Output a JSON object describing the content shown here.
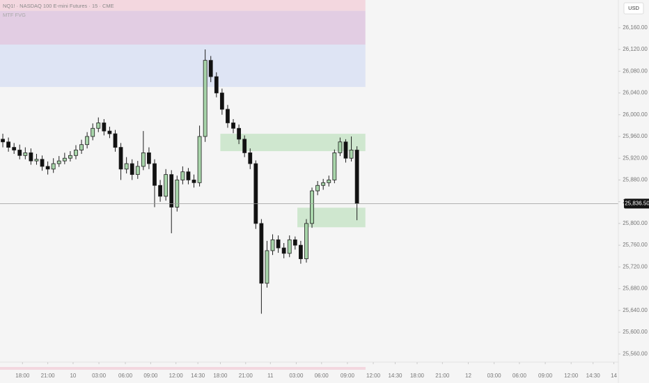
{
  "chart_data": {
    "type": "candlestick",
    "title": "NQ1! · NASDAQ 100 E-mini Futures · 15 · CME",
    "subtitle": "MTF FVG",
    "currency": "USD",
    "last_price": {
      "value": 25836.5,
      "label": "25,836.50"
    },
    "up_color": "#a8d5aa",
    "down_color": "#111111",
    "x": [
      0,
      1,
      2,
      3,
      4,
      5,
      6,
      7,
      8,
      9,
      10,
      11,
      12,
      13,
      14,
      15,
      16,
      17,
      18,
      19,
      20,
      21,
      22,
      23,
      24,
      25,
      26,
      27,
      28,
      29,
      30,
      31,
      32,
      33,
      34,
      35,
      36,
      37,
      38,
      39,
      40,
      41,
      42,
      43,
      44,
      45,
      46,
      47,
      48,
      49,
      50,
      51,
      52,
      53,
      54,
      55,
      56,
      57,
      58,
      59,
      60,
      61,
      62,
      63
    ],
    "open": [
      25955,
      25950,
      25940,
      25935,
      25925,
      25930,
      25915,
      25918,
      25905,
      25900,
      25910,
      25915,
      25920,
      25925,
      25935,
      25945,
      25960,
      25975,
      25985,
      25970,
      25965,
      25940,
      25900,
      25910,
      25890,
      25905,
      25930,
      25910,
      25870,
      25850,
      25890,
      25830,
      25880,
      25895,
      25880,
      25875,
      25960,
      26100,
      26070,
      26040,
      26010,
      25985,
      25975,
      25955,
      25930,
      25910,
      25800,
      25690,
      25750,
      25770,
      25755,
      25745,
      25770,
      25760,
      25735,
      25800,
      25860,
      25870,
      25875,
      25880,
      25930,
      25950,
      25920,
      25935
    ],
    "high": [
      25965,
      25958,
      25948,
      25945,
      25940,
      25938,
      25928,
      25925,
      25914,
      25920,
      25924,
      25930,
      25933,
      25944,
      25954,
      25968,
      25984,
      25995,
      25992,
      25978,
      25972,
      25948,
      25922,
      25918,
      25915,
      25970,
      25940,
      25918,
      25880,
      25900,
      25898,
      25888,
      25905,
      25902,
      25890,
      25980,
      26120,
      26108,
      26078,
      26048,
      26018,
      25992,
      25982,
      25962,
      25938,
      25916,
      25808,
      25768,
      25780,
      25778,
      25764,
      25778,
      25776,
      25768,
      25808,
      25866,
      25878,
      25882,
      25888,
      25936,
      25958,
      25955,
      25960,
      25942
    ],
    "low": [
      25940,
      25932,
      25928,
      25918,
      25918,
      25908,
      25908,
      25897,
      25890,
      25893,
      25904,
      25909,
      25914,
      25918,
      25928,
      25938,
      25953,
      25968,
      25962,
      25957,
      25932,
      25880,
      25892,
      25880,
      25882,
      25898,
      25900,
      25830,
      25840,
      25842,
      25782,
      25822,
      25872,
      25872,
      25866,
      25868,
      25950,
      26060,
      26032,
      26000,
      25976,
      25966,
      25946,
      25922,
      25900,
      25790,
      25634,
      25682,
      25742,
      25746,
      25736,
      25738,
      25752,
      25726,
      25728,
      25792,
      25852,
      25862,
      25868,
      25874,
      25924,
      25912,
      25914,
      25806
    ],
    "close": [
      25950,
      25940,
      25935,
      25925,
      25930,
      25915,
      25918,
      25905,
      25900,
      25910,
      25915,
      25920,
      25925,
      25935,
      25945,
      25960,
      25975,
      25985,
      25970,
      25965,
      25940,
      25900,
      25910,
      25890,
      25905,
      25930,
      25910,
      25870,
      25850,
      25890,
      25830,
      25880,
      25895,
      25880,
      25875,
      25960,
      26100,
      26070,
      26040,
      26010,
      25985,
      25975,
      25955,
      25930,
      25910,
      25800,
      25690,
      25750,
      25770,
      25755,
      25745,
      25770,
      25760,
      25735,
      25800,
      25860,
      25870,
      25875,
      25880,
      25930,
      25950,
      25920,
      25935,
      25836.5
    ],
    "zones": [
      {
        "low": 26191,
        "high": 26211,
        "start": -0.5,
        "end": 64.5,
        "color": "#f3d7df"
      },
      {
        "low": 26129,
        "high": 26191,
        "start": -0.5,
        "end": 64.5,
        "color": "#e2cde3"
      },
      {
        "low": 26051,
        "high": 26129,
        "start": -0.5,
        "end": 64.5,
        "color": "#dee4f4"
      },
      {
        "low": 25933,
        "high": 25965,
        "start": 38.7,
        "end": 64.5,
        "color": "#cfe7cf"
      },
      {
        "low": 25793,
        "high": 25829,
        "start": 52.4,
        "end": 64.5,
        "color": "#cfe7cf"
      }
    ],
    "xlim": [
      -0.5,
      109.5
    ],
    "ylim": [
      25545,
      26211
    ],
    "xticks": [
      {
        "value": 3.5,
        "label": "18:00"
      },
      {
        "value": 8,
        "label": "21:00"
      },
      {
        "value": 12.5,
        "label": "10"
      },
      {
        "value": 17.1,
        "label": "03:00"
      },
      {
        "value": 21.8,
        "label": "06:00"
      },
      {
        "value": 26.3,
        "label": "09:00"
      },
      {
        "value": 30.8,
        "label": "12:00"
      },
      {
        "value": 34.7,
        "label": "14:30"
      },
      {
        "value": 38.7,
        "label": "18:00"
      },
      {
        "value": 43.2,
        "label": "21:00"
      },
      {
        "value": 47.6,
        "label": "11"
      },
      {
        "value": 52.2,
        "label": "03:00"
      },
      {
        "value": 56.7,
        "label": "06:00"
      },
      {
        "value": 61.3,
        "label": "09:00"
      },
      {
        "value": 65.9,
        "label": "12:00"
      },
      {
        "value": 69.8,
        "label": "14:30"
      },
      {
        "value": 73.7,
        "label": "18:00"
      },
      {
        "value": 78.2,
        "label": "21:00"
      },
      {
        "value": 82.8,
        "label": "12"
      },
      {
        "value": 87.4,
        "label": "03:00"
      },
      {
        "value": 91.9,
        "label": "06:00"
      },
      {
        "value": 96.5,
        "label": "09:00"
      },
      {
        "value": 101.1,
        "label": "12:00"
      },
      {
        "value": 105,
        "label": "14:30"
      },
      {
        "value": 108.7,
        "label": "14"
      }
    ],
    "yticks": [
      {
        "value": 25560,
        "label": "25,560.00"
      },
      {
        "value": 25600,
        "label": "25,600.00"
      },
      {
        "value": 25640,
        "label": "25,640.00"
      },
      {
        "value": 25680,
        "label": "25,680.00"
      },
      {
        "value": 25720,
        "label": "25,720.00"
      },
      {
        "value": 25760,
        "label": "25,760.00"
      },
      {
        "value": 25800,
        "label": "25,800.00"
      },
      {
        "value": 25840,
        "label": "25,840.00"
      },
      {
        "value": 25880,
        "label": "25,880.00"
      },
      {
        "value": 25920,
        "label": "25,920.00"
      },
      {
        "value": 25960,
        "label": "25,960.00"
      },
      {
        "value": 26000,
        "label": "26,000.00"
      },
      {
        "value": 26040,
        "label": "26,040.00"
      },
      {
        "value": 26080,
        "label": "26,080.00"
      },
      {
        "value": 26120,
        "label": "26,120.00"
      },
      {
        "value": 26160,
        "label": "26,160.00"
      }
    ]
  }
}
